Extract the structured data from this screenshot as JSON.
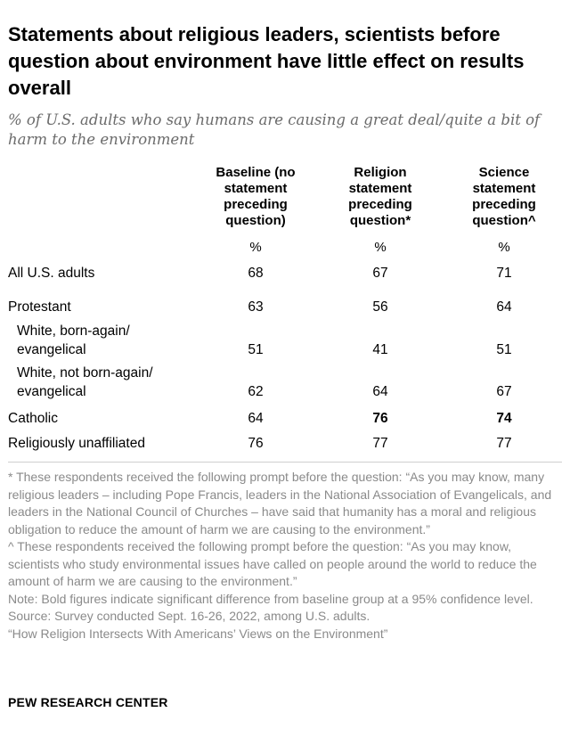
{
  "title": "Statements about religious leaders, scientists before question about environment have little effect on results overall",
  "subtitle": "% of U.S. adults who say humans are causing a great deal/quite a bit of harm to the environment",
  "chart_data": {
    "type": "table",
    "columns": [
      {
        "label": "Baseline (no statement preceding question)",
        "unit": "%"
      },
      {
        "label": "Religion statement preceding question*",
        "unit": "%"
      },
      {
        "label": "Science statement preceding question^",
        "unit": "%"
      }
    ],
    "rows": [
      {
        "label": "All U.S. adults",
        "values": [
          "68",
          "67",
          "71"
        ],
        "bold": [
          false,
          false,
          false
        ]
      },
      {
        "label": "Protestant",
        "values": [
          "63",
          "56",
          "64"
        ],
        "bold": [
          false,
          false,
          false
        ]
      },
      {
        "label": "White, born-again/ evangelical",
        "values": [
          "51",
          "41",
          "51"
        ],
        "bold": [
          false,
          false,
          false
        ]
      },
      {
        "label": "White, not born-again/ evangelical",
        "values": [
          "62",
          "64",
          "67"
        ],
        "bold": [
          false,
          false,
          false
        ]
      },
      {
        "label": "Catholic",
        "values": [
          "64",
          "76",
          "74"
        ],
        "bold": [
          false,
          true,
          true
        ]
      },
      {
        "label": "Religiously unaffiliated",
        "values": [
          "76",
          "77",
          "77"
        ],
        "bold": [
          false,
          false,
          false
        ]
      }
    ]
  },
  "notes": [
    "* These respondents received the following prompt before the question: “As you may know, many religious leaders – including Pope Francis, leaders in the National Association of Evangelicals, and leaders in the National Council of Churches – have said that humanity has a moral and religious obligation to reduce the amount of harm we are causing to the environment.”",
    "^ These respondents received the following prompt before the question: “As you may know, scientists who study environmental issues have called on people around the world to reduce the amount of harm we are causing to the environment.”",
    "Note: Bold figures indicate significant difference from baseline group at a 95% confidence level.",
    "Source: Survey conducted Sept. 16-26, 2022, among U.S. adults.",
    "“How Religion Intersects With Americans’ Views on the Environment”"
  ],
  "brand": "PEW RESEARCH CENTER"
}
